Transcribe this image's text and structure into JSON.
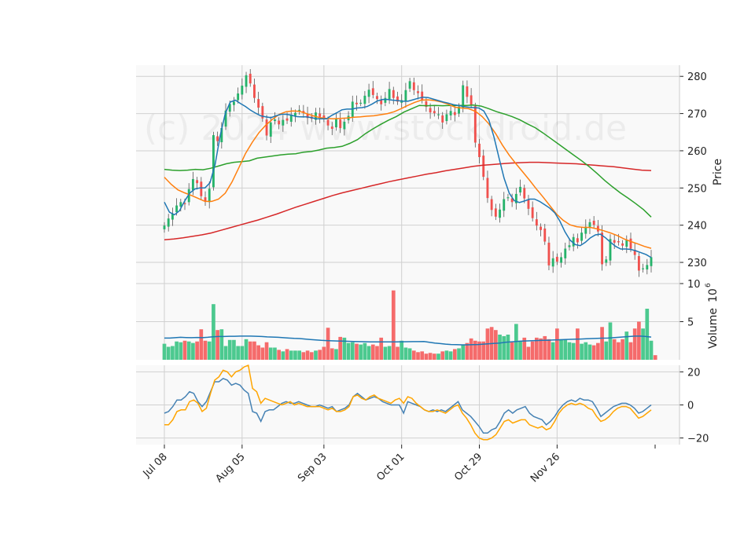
{
  "chart_data": {
    "type": "candlestick",
    "watermark": "(c) 2024 www.stockdroid.de",
    "x_tick_labels": [
      "Jul 08",
      "Aug 05",
      "Sep 03",
      "Oct 01",
      "Oct 29",
      "Nov 26"
    ],
    "price_panel": {
      "ylabel": "Price",
      "ylim": [
        226,
        283
      ],
      "y_ticks": [
        230,
        240,
        250,
        260,
        270,
        280
      ],
      "close": [
        239.9,
        241.8,
        243.1,
        245.3,
        246.2,
        245.8,
        249.7,
        252.4,
        251.3,
        247.8,
        246.5,
        249.8,
        264.2,
        262.6,
        266.1,
        270.8,
        272.6,
        273.2,
        275.4,
        277.5,
        280.3,
        278.1,
        274.2,
        271.6,
        268.7,
        264.1,
        267.6,
        268.4,
        267.1,
        268.3,
        268.1,
        269.7,
        270.2,
        271.0,
        270.2,
        268.8,
        268.6,
        270.3,
        269.1,
        268.6,
        266.8,
        265.9,
        268.7,
        266.1,
        267.8,
        269.4,
        273.2,
        272.5,
        272.9,
        274.8,
        276.4,
        275.0,
        273.9,
        272.5,
        274.2,
        276.6,
        274.2,
        273.2,
        273.6,
        276.3,
        278.7,
        276.3,
        275.5,
        273.6,
        271.8,
        270.3,
        270.1,
        269.8,
        267.6,
        269.8,
        270.7,
        269.6,
        271.9,
        277.6,
        274.5,
        272.3,
        262.2,
        258.3,
        253.0,
        247.3,
        244.1,
        242.3,
        244.2,
        247.0,
        247.5,
        246.2,
        248.4,
        250.3,
        247.2,
        244.4,
        241.9,
        239.9,
        238.7,
        235.6,
        229.2,
        231.1,
        230.2,
        231.4,
        233.7,
        234.6,
        236.8,
        235.4,
        238.0,
        239.6,
        240.8,
        240.1,
        238.3,
        229.5,
        230.8,
        236.3,
        235.3,
        235.4,
        234.5,
        236.0,
        233.7,
        232.0,
        227.8,
        228.4,
        229.3,
        231.4
      ],
      "ma_short": [
        246.2,
        243.5,
        242.8,
        243.9,
        246.5,
        248.6,
        249.7,
        250.0,
        250.0,
        251.4,
        256.3,
        264.0,
        270.0,
        273.1,
        273.6,
        272.7,
        271.9,
        270.9,
        270.1,
        269.4,
        269.1,
        268.9,
        269.4,
        269.8,
        269.8,
        269.6,
        269.2,
        269.1,
        269.1,
        268.9,
        268.6,
        268.6,
        268.6,
        269.5,
        270.2,
        271.0,
        271.2,
        271.2,
        271.5,
        271.6,
        271.9,
        272.6,
        273.4,
        273.8,
        273.8,
        273.6,
        273.5,
        273.3,
        273.3,
        273.7,
        274.1,
        274.4,
        274.3,
        273.9,
        273.5,
        273.1,
        272.8,
        272.4,
        272.2,
        271.9,
        271.7,
        271.6,
        271.5,
        270.7,
        268.2,
        263.7,
        258.0,
        252.6,
        248.6,
        246.6,
        246.1,
        246.5,
        247.0,
        247.0,
        246.4,
        245.5,
        244.6,
        243.3,
        241.1,
        238.2,
        236.0,
        234.8,
        234.5,
        235.4,
        236.6,
        237.4,
        237.6,
        236.6,
        235.4,
        234.3,
        233.6,
        233.6,
        233.5,
        233.1,
        232.6,
        232.1,
        231.3
      ],
      "ma_mid": [
        252.9,
        251.0,
        249.5,
        248.7,
        248.0,
        247.2,
        246.4,
        246.4,
        247.0,
        248.6,
        251.6,
        255.4,
        259.3,
        262.3,
        264.9,
        266.9,
        268.5,
        269.8,
        270.5,
        270.7,
        270.6,
        270.0,
        269.4,
        268.9,
        268.7,
        268.6,
        268.7,
        268.8,
        269.0,
        269.1,
        269.3,
        269.4,
        269.7,
        270.0,
        270.5,
        271.3,
        272.2,
        273.0,
        273.6,
        273.7,
        273.5,
        273.1,
        272.5,
        271.7,
        271.5,
        271.3,
        270.6,
        269.2,
        267.2,
        264.6,
        261.5,
        258.8,
        256.5,
        254.3,
        252.1,
        249.8,
        247.6,
        245.3,
        243.0,
        241.3,
        240.1,
        239.6,
        239.4,
        239.4,
        239.0,
        238.5,
        237.9,
        237.2,
        236.3,
        235.6,
        235.0,
        234.3,
        233.8
      ],
      "ma_long": [
        255.0,
        254.8,
        254.7,
        254.8,
        255.0,
        254.9,
        255.3,
        255.9,
        256.5,
        256.9,
        257.1,
        257.3,
        258.0,
        258.3,
        258.6,
        258.9,
        259.1,
        259.2,
        259.6,
        259.8,
        260.2,
        260.7,
        260.9,
        261.2,
        262.0,
        263.0,
        264.6,
        265.9,
        267.1,
        268.2,
        269.2,
        270.4,
        271.3,
        272.2,
        272.1,
        272.2,
        272.1,
        272.2,
        272.2,
        272.2,
        272.3,
        272.0,
        271.3,
        270.5,
        269.9,
        269.2,
        268.3,
        267.2,
        266.2,
        264.8,
        263.3,
        261.8,
        260.3,
        258.8,
        257.3,
        255.7,
        253.9,
        252.0,
        250.3,
        248.7,
        247.3,
        245.8,
        244.2,
        242.2
      ],
      "ma_200": [
        236.1,
        236.3,
        236.6,
        237.0,
        237.4,
        237.9,
        238.6,
        239.3,
        240.0,
        240.7,
        241.4,
        242.2,
        243.0,
        243.9,
        244.8,
        245.6,
        246.4,
        247.2,
        248.0,
        248.7,
        249.3,
        249.9,
        250.5,
        251.1,
        251.7,
        252.2,
        252.7,
        253.2,
        253.7,
        254.1,
        254.6,
        255.0,
        255.4,
        255.8,
        256.1,
        256.3,
        256.5,
        256.7,
        256.8,
        256.9,
        256.9,
        256.8,
        256.7,
        256.6,
        256.5,
        256.3,
        256.1,
        255.9,
        255.7,
        255.4,
        255.1,
        254.8,
        254.7
      ]
    },
    "volume_panel": {
      "ylabel": "Volume",
      "unit_exponent": "6",
      "ylim": [
        0,
        10
      ],
      "y_ticks": [
        5,
        10
      ],
      "values": [
        2.1,
        1.7,
        1.8,
        2.4,
        2.3,
        2.5,
        2.4,
        2.2,
        2.4,
        4.0,
        2.5,
        2.4,
        7.3,
        3.9,
        4.0,
        1.8,
        2.6,
        2.6,
        1.8,
        1.8,
        2.7,
        2.4,
        2.4,
        1.9,
        1.6,
        2.3,
        1.6,
        1.6,
        1.3,
        1.1,
        1.4,
        1.2,
        1.2,
        1.2,
        1.0,
        1.2,
        1.0,
        1.2,
        1.3,
        1.7,
        4.2,
        1.5,
        1.4,
        3.0,
        2.9,
        2.2,
        2.3,
        2.1,
        2.0,
        2.2,
        1.8,
        2.0,
        1.8,
        2.9,
        1.7,
        1.8,
        9.1,
        1.7,
        2.5,
        1.6,
        1.5,
        1.2,
        1.0,
        1.1,
        0.8,
        0.9,
        0.8,
        0.8,
        1.1,
        1.2,
        1.1,
        1.4,
        1.5,
        2.0,
        2.2,
        2.8,
        2.5,
        2.4,
        2.4,
        4.1,
        4.3,
        3.9,
        3.3,
        3.1,
        3.3,
        2.3,
        4.7,
        2.5,
        2.9,
        1.7,
        2.4,
        2.9,
        2.8,
        3.1,
        2.7,
        2.3,
        4.1,
        2.7,
        2.7,
        2.3,
        2.2,
        4.1,
        2.1,
        2.3,
        2.0,
        1.9,
        2.2,
        4.3,
        2.4,
        4.9,
        2.7,
        2.3,
        2.7,
        3.7,
        2.3,
        4.1,
        5.0,
        4.1,
        6.7,
        2.5,
        0.6
      ],
      "avg": [
        2.85,
        2.85,
        2.9,
        2.95,
        2.92,
        2.9,
        2.93,
        2.9,
        2.95,
        3.02,
        3.05,
        3.05,
        3.08,
        3.08,
        3.1,
        3.1,
        3.1,
        3.08,
        3.05,
        3.0,
        2.98,
        2.95,
        2.9,
        2.85,
        2.8,
        2.78,
        2.72,
        2.66,
        2.6,
        2.55,
        2.52,
        2.48,
        2.46,
        2.44,
        2.42,
        2.4,
        2.38,
        2.37,
        2.35,
        2.35,
        2.34,
        2.34,
        2.34,
        2.35,
        2.36,
        2.37,
        2.38,
        2.38,
        2.4,
        2.3,
        2.2,
        2.12,
        2.05,
        2.0,
        1.98,
        1.96,
        1.96,
        1.98,
        2.0,
        2.05,
        2.1,
        2.15,
        2.2,
        2.3,
        2.35,
        2.4,
        2.44,
        2.47,
        2.5,
        2.53,
        2.55,
        2.57,
        2.6,
        2.62,
        2.65,
        2.68,
        2.7,
        2.72,
        2.75,
        2.78,
        2.8,
        2.83,
        2.85,
        2.9,
        2.95,
        3.0,
        3.05,
        3.1,
        3.1,
        3.05,
        2.98
      ]
    },
    "oscillator_panel": {
      "ylim": [
        -24,
        24
      ],
      "y_ticks": [
        -20,
        0,
        20
      ],
      "series": [
        {
          "name": "blue",
          "color": "#4682b4",
          "values": [
            -5,
            -4,
            -1,
            3,
            3,
            5,
            8,
            7,
            2,
            -1,
            2,
            8,
            14,
            14,
            16,
            15,
            12,
            13,
            12,
            9,
            7,
            -4,
            -5,
            -10,
            -4,
            -3,
            -3,
            -1,
            1,
            2,
            1,
            1,
            2,
            1,
            0,
            -1,
            -1,
            0,
            -1,
            -2,
            -1,
            -4,
            -3,
            -2,
            0,
            5,
            7,
            5,
            3,
            4,
            5,
            4,
            2,
            1,
            0,
            0,
            0,
            -5,
            2,
            1,
            0,
            -1,
            -3,
            -4,
            -3,
            -4,
            -3,
            -4,
            -2,
            0,
            2,
            -3,
            -5,
            -7,
            -10,
            -13,
            -17,
            -17,
            -15,
            -14,
            -10,
            -5,
            -3,
            -5,
            -3,
            -2,
            -1,
            -5,
            -7,
            -8,
            -9,
            -12,
            -10,
            -7,
            -3,
            0,
            2,
            3,
            2,
            4,
            3,
            3,
            2,
            -2,
            -7,
            -5,
            -3,
            -1,
            0,
            1,
            1,
            0,
            -2,
            -5,
            -4,
            -2,
            0
          ]
        },
        {
          "name": "orange",
          "color": "#ffa500",
          "values": [
            -12,
            -12,
            -9,
            -4,
            -3,
            -3,
            2,
            3,
            1,
            -4,
            -2,
            7,
            15,
            17,
            21,
            20,
            17,
            20,
            21,
            23,
            24,
            10,
            8,
            1,
            4,
            3,
            2,
            1,
            0,
            1,
            2,
            0,
            1,
            0,
            -1,
            -1,
            -1,
            -1,
            -2,
            -3,
            -2,
            -4,
            -4,
            -3,
            -1,
            5,
            6,
            4,
            3,
            5,
            6,
            4,
            3,
            2,
            1,
            3,
            4,
            1,
            5,
            4,
            1,
            -1,
            -3,
            -4,
            -4,
            -3,
            -4,
            -5,
            -3,
            -1,
            0,
            -5,
            -8,
            -12,
            -17,
            -20,
            -21,
            -21,
            -20,
            -18,
            -14,
            -10,
            -9,
            -11,
            -10,
            -9,
            -9,
            -12,
            -13,
            -14,
            -13,
            -15,
            -14,
            -10,
            -5,
            -2,
            0,
            1,
            0,
            1,
            0,
            -2,
            -3,
            -7,
            -10,
            -9,
            -7,
            -4,
            -2,
            -1,
            -1,
            -2,
            -5,
            -8,
            -7,
            -5,
            -3
          ]
        }
      ]
    }
  }
}
